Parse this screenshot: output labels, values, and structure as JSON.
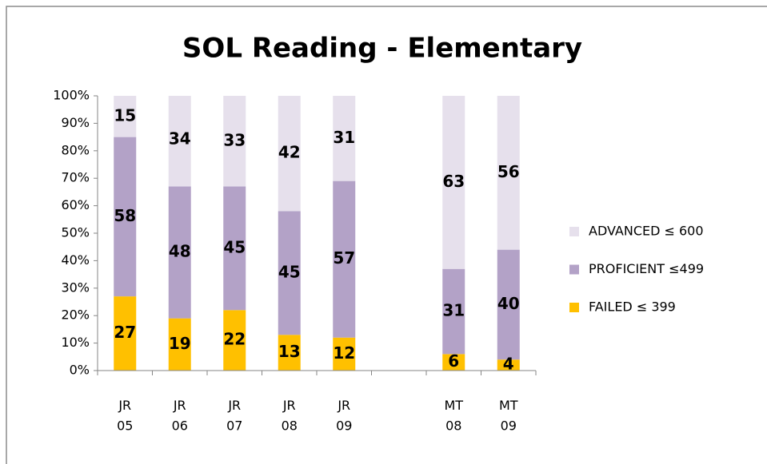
{
  "chart_data": {
    "type": "stacked_bar",
    "title": "SOL Reading - Elementary",
    "categories": [
      "JR 05",
      "JR 06",
      "JR 07",
      "JR 08",
      "JR 09",
      null,
      "MT 08",
      "MT 09"
    ],
    "series": [
      {
        "name": "FAILED ≤ 399",
        "color": "#ffc000",
        "values": [
          27,
          19,
          22,
          13,
          12,
          null,
          6,
          4
        ]
      },
      {
        "name": "PROFICIENT ≤499",
        "color": "#b3a2c7",
        "values": [
          58,
          48,
          45,
          45,
          57,
          null,
          31,
          40
        ]
      },
      {
        "name": "ADVANCED ≤ 600",
        "color": "#e6e0ec",
        "values": [
          15,
          34,
          33,
          42,
          31,
          null,
          63,
          56
        ]
      }
    ],
    "ylim": [
      0,
      100
    ],
    "yticks": [
      {
        "value": 0,
        "label": "0%"
      },
      {
        "value": 10,
        "label": "10%"
      },
      {
        "value": 20,
        "label": "20%"
      },
      {
        "value": 30,
        "label": "30%"
      },
      {
        "value": 40,
        "label": "40%"
      },
      {
        "value": 50,
        "label": "50%"
      },
      {
        "value": 60,
        "label": "60%"
      },
      {
        "value": 70,
        "label": "70%"
      },
      {
        "value": 80,
        "label": "80%"
      },
      {
        "value": 90,
        "label": "90%"
      },
      {
        "value": 100,
        "label": "100%"
      }
    ],
    "legend": "right"
  }
}
